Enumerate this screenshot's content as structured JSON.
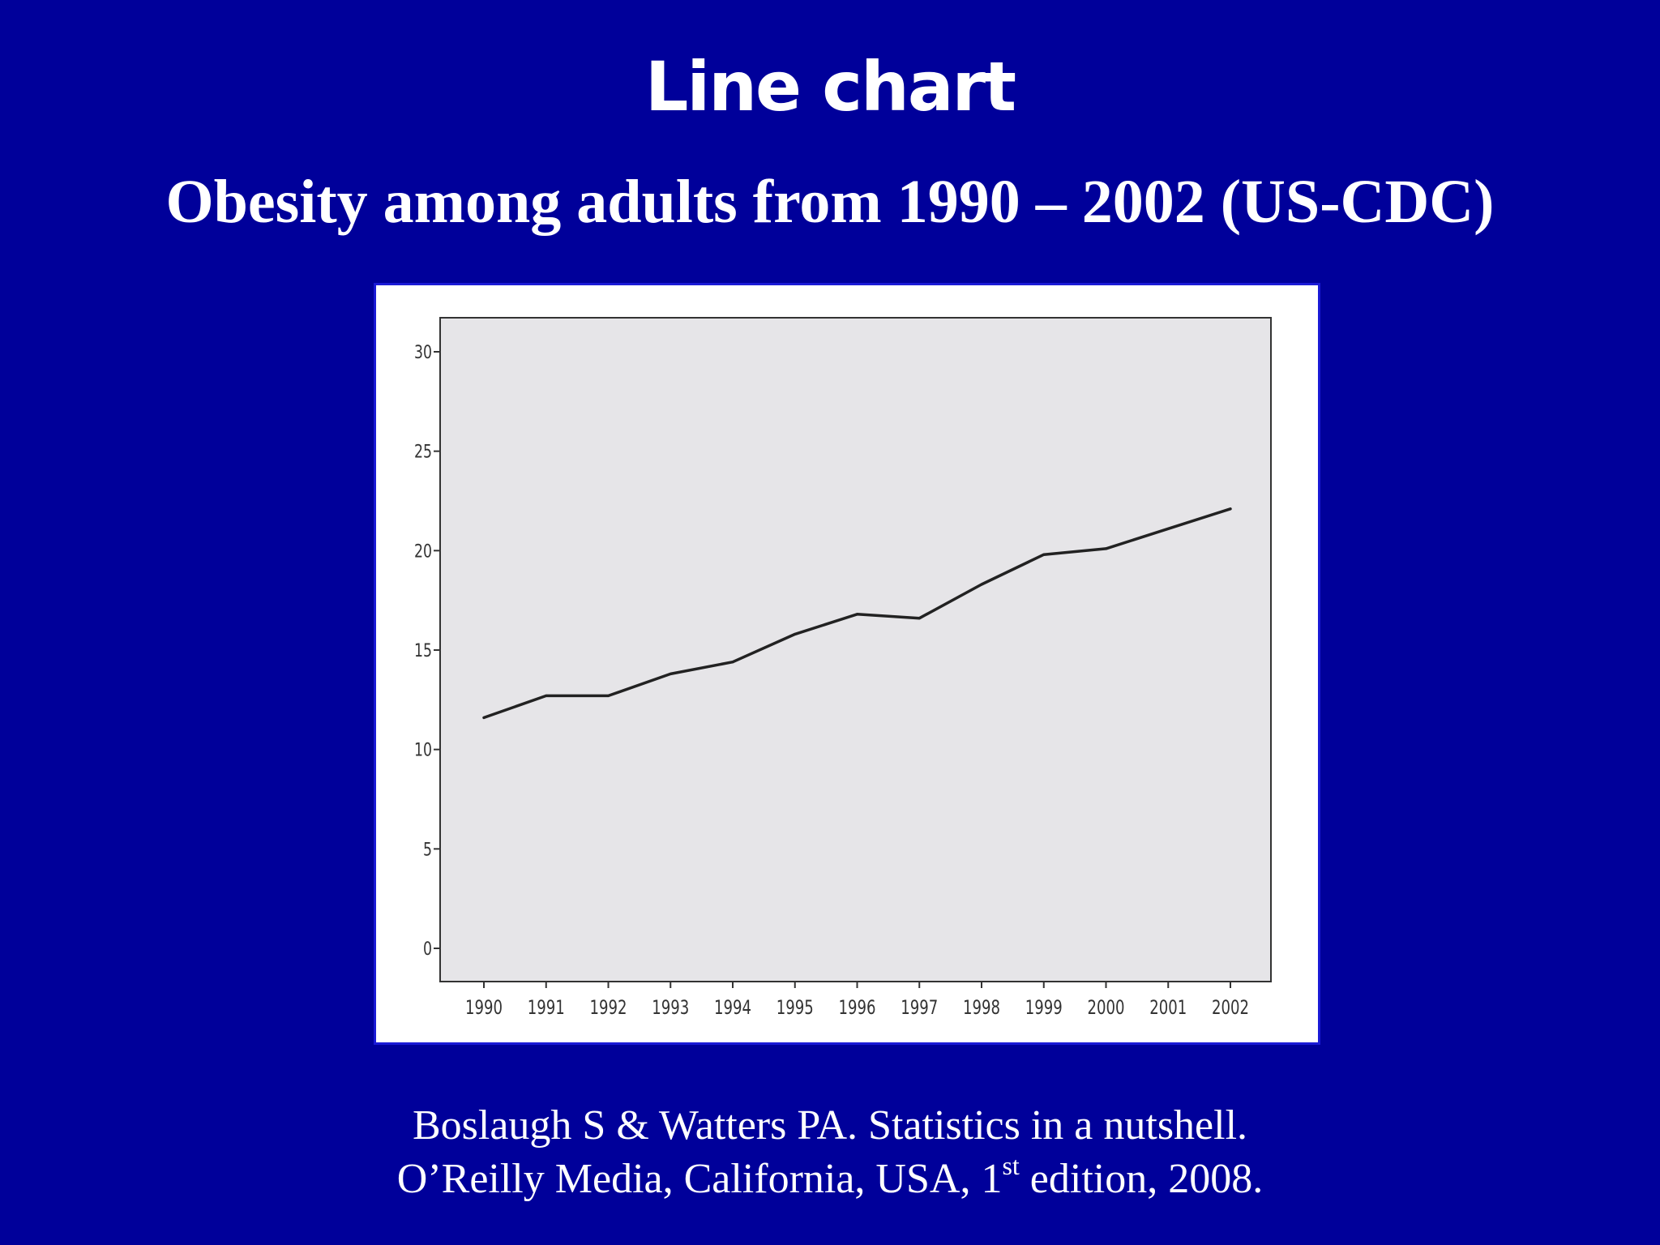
{
  "slide": {
    "title": "Line chart",
    "subtitle": "Obesity among adults from 1990 – 2002 (US-CDC)",
    "citation_line1": "Boslaugh S & Watters PA. Statistics in a nutshell.",
    "citation_line2_before": "O’Reilly Media, California, USA, 1",
    "citation_line2_sup": "st",
    "citation_line2_after": " edition, 2008."
  },
  "colors": {
    "background": "#00009a",
    "plot_area": "#e6e5e8",
    "line": "#222222"
  },
  "chart_data": {
    "type": "line",
    "title": "",
    "xlabel": "",
    "ylabel": "",
    "categories": [
      "1990",
      "1991",
      "1992",
      "1993",
      "1994",
      "1995",
      "1996",
      "1997",
      "1998",
      "1999",
      "2000",
      "2001",
      "2002"
    ],
    "series": [
      {
        "values": [
          11.6,
          12.7,
          12.7,
          13.8,
          14.4,
          15.8,
          16.8,
          16.6,
          18.3,
          19.8,
          20.1,
          21.1,
          22.1
        ]
      }
    ],
    "ylim": [
      0,
      30
    ],
    "yticks": [
      0,
      5,
      10,
      15,
      20,
      25,
      30
    ],
    "grid": false,
    "legend": "none"
  }
}
